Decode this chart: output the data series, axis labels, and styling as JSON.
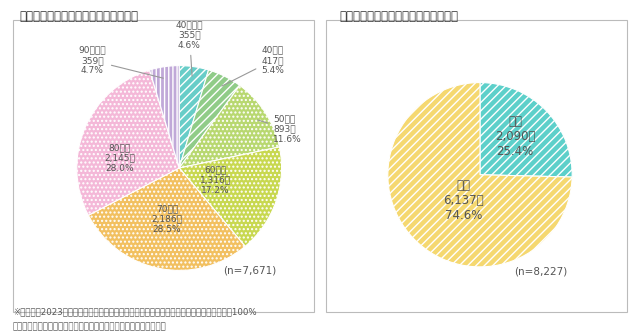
{
  "fig2_title": "図２　契約当事者の年代別件数・割合",
  "fig3_title": "図３　契約当事者の男女別件数・割合",
  "fig2_n": "(n=7,671)",
  "fig3_n": "(n=8,227)",
  "age_labels": [
    "40歳未満",
    "40歳代",
    "50歳代",
    "60歳代",
    "70歳代",
    "80歳代",
    "90歳以上"
  ],
  "age_counts": [
    "355件",
    "417件",
    "893件",
    "1,316件",
    "2,186件",
    "2,145件",
    "359件"
  ],
  "age_pcts": [
    "4.6%",
    "5.4%",
    "11.6%",
    "17.2%",
    "28.5%",
    "28.0%",
    "4.7%"
  ],
  "age_values": [
    355,
    417,
    893,
    1316,
    2186,
    2145,
    359
  ],
  "age_colors": [
    "#68cdc8",
    "#90cc88",
    "#b8d870",
    "#c8d850",
    "#f2c060",
    "#f4b8d8",
    "#c0a8d8"
  ],
  "gender_labels": [
    "男性",
    "女性"
  ],
  "gender_counts": [
    "2,090件",
    "6,137件"
  ],
  "gender_pcts": [
    "25.4%",
    "74.6%"
  ],
  "gender_values": [
    2090,
    6137
  ],
  "gender_colors": [
    "#5dd0ca",
    "#f5d870"
  ],
  "footnote_line1": "※いずれも2023年度受付。割合の数値は小数点以下第２位を四捨五入しているため合計が100%",
  "footnote_line2": "　にならない場合がある。不明・無回答等は除いて分析している。",
  "bg_color": "#ffffff",
  "text_color": "#555555",
  "title_color": "#333333",
  "box_color": "#bbbbbb"
}
